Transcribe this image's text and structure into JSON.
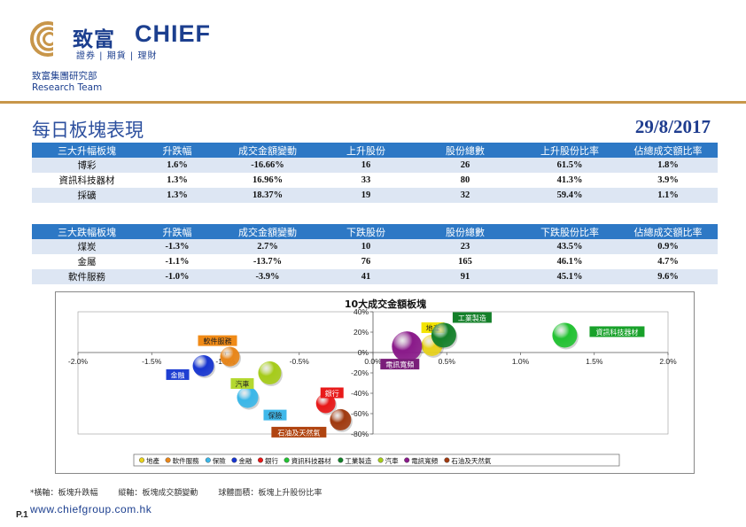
{
  "brand": {
    "name_cn": "致富",
    "name_en": "CHIEF",
    "tagline": "證券 | 期貨 | 理財",
    "colors": {
      "navy": "#1c3f8f",
      "gold": "#c8964a",
      "header_blue": "#2d78c5",
      "row_alt": "#dde6f3"
    }
  },
  "department": {
    "cn": "致富集團研究部",
    "en": "Research Team"
  },
  "report": {
    "title": "每日板塊表現",
    "date": "29/8/2017"
  },
  "top_rise_table": {
    "headers": [
      "三大升幅板塊",
      "升跌幅",
      "成交金額變動",
      "上升股份",
      "股份總數",
      "上升股份比率",
      "佔總成交額比率"
    ],
    "rows": [
      [
        "博彩",
        "1.6%",
        "-16.66%",
        "16",
        "26",
        "61.5%",
        "1.8%"
      ],
      [
        "資訊科技器材",
        "1.3%",
        "16.96%",
        "33",
        "80",
        "41.3%",
        "3.9%"
      ],
      [
        "採礦",
        "1.3%",
        "18.37%",
        "19",
        "32",
        "59.4%",
        "1.1%"
      ]
    ]
  },
  "top_fall_table": {
    "headers": [
      "三大跌幅板塊",
      "升跌幅",
      "成交金額變動",
      "下跌股份",
      "股份總數",
      "下跌股份比率",
      "佔總成交額比率"
    ],
    "rows": [
      [
        "煤炭",
        "-1.3%",
        "2.7%",
        "10",
        "23",
        "43.5%",
        "0.9%"
      ],
      [
        "金屬",
        "-1.1%",
        "-13.7%",
        "76",
        "165",
        "46.1%",
        "4.7%"
      ],
      [
        "軟件服務",
        "-1.0%",
        "-3.9%",
        "41",
        "91",
        "45.1%",
        "9.6%"
      ]
    ]
  },
  "chart_data": {
    "type": "scatter",
    "title": "10大成交金額板塊",
    "xlabel": "板塊升跌幅",
    "ylabel": "板塊成交額變動",
    "xlim": [
      -2.0,
      2.0
    ],
    "ylim": [
      -80,
      40
    ],
    "x_ticks": [
      "-2.0%",
      "-1.5%",
      "-1.0%",
      "-0.5%",
      "0.0%",
      "0.5%",
      "1.0%",
      "1.5%",
      "2.0%"
    ],
    "y_ticks": [
      "40%",
      "20%",
      "0%",
      "-20%",
      "-40%",
      "-60%",
      "-80%"
    ],
    "series": [
      {
        "name": "地產",
        "x": 0.4,
        "y": 7,
        "size": 12,
        "color": "#e8d21c",
        "label_color": "#f3e300",
        "label_text_color": "#222222"
      },
      {
        "name": "軟件服務",
        "x": -0.97,
        "y": -4,
        "size": 11,
        "color": "#e8861a",
        "label_color": "#f08a16",
        "label_text_color": "#222222"
      },
      {
        "name": "保險",
        "x": -0.85,
        "y": -44,
        "size": 12,
        "color": "#3bb7e8",
        "label_color": "#3fb8ea",
        "label_text_color": "#222222"
      },
      {
        "name": "金融",
        "x": -1.15,
        "y": -13,
        "size": 12,
        "color": "#1836d0",
        "label_color": "#1f3fd2",
        "label_text_color": "#ffffff"
      },
      {
        "name": "銀行",
        "x": -0.32,
        "y": -50,
        "size": 11,
        "color": "#e81818",
        "label_color": "#e81a1a",
        "label_text_color": "#ffffff"
      },
      {
        "name": "資訊科技器材",
        "x": 1.3,
        "y": 17,
        "size": 14,
        "color": "#22c232",
        "label_color": "#18a12a",
        "label_text_color": "#ffffff"
      },
      {
        "name": "工業製造",
        "x": 0.48,
        "y": 17,
        "size": 14,
        "color": "#14802a",
        "label_color": "#14802a",
        "label_text_color": "#ffffff"
      },
      {
        "name": "汽車",
        "x": -0.7,
        "y": -20,
        "size": 13,
        "color": "#a6cc1a",
        "label_color": "#b4d830",
        "label_text_color": "#222222"
      },
      {
        "name": "電訊寬頻",
        "x": 0.23,
        "y": 6,
        "size": 17,
        "color": "#8a1a8a",
        "label_color": "#7a1e7a",
        "label_text_color": "#ffffff"
      },
      {
        "name": "石油及天然氣",
        "x": -0.22,
        "y": -66,
        "size": 12,
        "color": "#a03a10",
        "label_color": "#b04410",
        "label_text_color": "#ffffff"
      }
    ],
    "legend_position": "bottom"
  },
  "footnote": {
    "x_axis": "*橫軸：板塊升跌幅",
    "y_axis": "縱軸：板塊成交額變動",
    "bubble": "球體面積：板塊上升股份比率"
  },
  "footer": {
    "page": "P.1",
    "website": "www.chiefgroup.com.hk"
  }
}
